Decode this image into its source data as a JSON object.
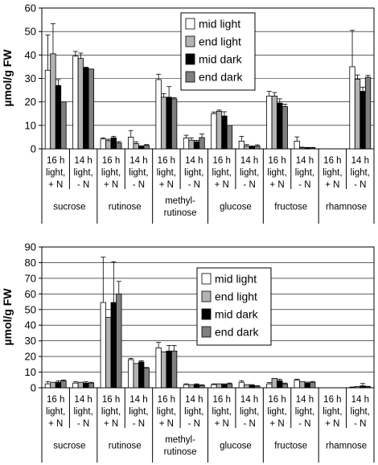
{
  "colors": {
    "series": [
      "#ffffff",
      "#b3b3b3",
      "#000000",
      "#7f7f7f"
    ],
    "stroke": "#000000",
    "grid": "#000000",
    "background": "#ffffff"
  },
  "chart_data": [
    {
      "type": "bar",
      "ylabel": "µmol/g FW",
      "ylim": [
        0,
        60
      ],
      "yticks": [
        0,
        10,
        20,
        30,
        40,
        50,
        60
      ],
      "grid": true,
      "legend": "top-center",
      "sugars": [
        "sucrose",
        "rutinose",
        "methyl-rutinose",
        "glucose",
        "fructose",
        "rhamnose"
      ],
      "conditions": [
        "16 h light, + N",
        "14 h light, - N"
      ],
      "condition_lines": [
        [
          "16 h",
          "light,",
          "+ N"
        ],
        [
          "14 h",
          "light,",
          "- N"
        ]
      ],
      "sugar_lines": [
        [
          "sucrose"
        ],
        [
          "rutinose"
        ],
        [
          "methyl-",
          "rutinose"
        ],
        [
          "glucose"
        ],
        [
          "fructose"
        ],
        [
          "rhamnose"
        ]
      ],
      "series": [
        {
          "name": "mid light",
          "values": [
            33.5,
            39.5,
            4.2,
            5.0,
            29.5,
            4.6,
            15.0,
            3.3,
            22.5,
            3.3,
            0,
            35.0
          ],
          "errors": [
            15.0,
            2.0,
            0.5,
            2.8,
            2.3,
            1.2,
            0.7,
            2.0,
            2.0,
            1.8,
            0,
            15.5
          ]
        },
        {
          "name": "end light",
          "values": [
            40.5,
            38.5,
            3.5,
            2.2,
            22.0,
            3.7,
            16.0,
            1.2,
            22.5,
            0.4,
            0,
            29.7
          ],
          "errors": [
            12.8,
            2.3,
            0.6,
            0.8,
            1.5,
            1.0,
            0.5,
            0.6,
            1.5,
            0.3,
            0,
            1.8
          ]
        },
        {
          "name": "mid dark",
          "values": [
            27.0,
            34.5,
            4.7,
            1.0,
            22.0,
            3.0,
            14.0,
            0.9,
            19.5,
            0.4,
            0,
            24.5
          ],
          "errors": [
            2.5,
            0.3,
            0.6,
            0.3,
            4.5,
            0.6,
            1.8,
            0.4,
            1.8,
            0.2,
            0,
            1.8
          ]
        },
        {
          "name": "end dark",
          "values": [
            20.0,
            34.0,
            2.5,
            1.5,
            21.3,
            4.8,
            10.0,
            1.2,
            18.0,
            0.4,
            0,
            30.5
          ],
          "errors": [
            0,
            0,
            0.6,
            0.3,
            0.5,
            1.5,
            0,
            0.5,
            1.0,
            0.2,
            0,
            0.8
          ]
        }
      ]
    },
    {
      "type": "bar",
      "ylabel": "µmol/g FW",
      "ylim": [
        0,
        90
      ],
      "yticks": [
        0,
        10,
        20,
        30,
        40,
        50,
        60,
        70,
        80,
        90
      ],
      "grid": true,
      "legend": "top-center",
      "sugars": [
        "sucrose",
        "rutinose",
        "methyl-rutinose",
        "glucose",
        "fructose",
        "rhamnose"
      ],
      "conditions": [
        "16 h light, + N",
        "14 h light, - N"
      ],
      "condition_lines": [
        [
          "16 h",
          "light,",
          "+ N"
        ],
        [
          "14 h",
          "light,",
          "- N"
        ]
      ],
      "sugar_lines": [
        [
          "sucrose"
        ],
        [
          "rutinose"
        ],
        [
          "methyl-",
          "rutinose"
        ],
        [
          "glucose"
        ],
        [
          "fructose"
        ],
        [
          "rhamnose"
        ]
      ],
      "series": [
        {
          "name": "mid light",
          "values": [
            2.5,
            3.0,
            54.5,
            18.0,
            25.5,
            2.0,
            2.0,
            3.5,
            2.5,
            5.0,
            0,
            0.3
          ],
          "errors": [
            1.5,
            0.8,
            29.0,
            0.8,
            3.5,
            0.5,
            0.5,
            1.0,
            0.8,
            0.5,
            0,
            0.2
          ]
        },
        {
          "name": "end light",
          "values": [
            3.5,
            3.5,
            45.0,
            15.5,
            23.0,
            2.0,
            2.5,
            2.0,
            6.0,
            4.0,
            0,
            0.8
          ]
        },
        {
          "name": "mid dark",
          "values": [
            3.5,
            3.0,
            54.5,
            16.5,
            23.5,
            2.0,
            2.0,
            1.5,
            4.5,
            3.0,
            0,
            1.2
          ],
          "errors": [
            1.0,
            0.8,
            26.0,
            0.8,
            3.5,
            0.5,
            0.5,
            0.5,
            1.0,
            0.6,
            0,
            1.5
          ]
        },
        {
          "name": "end dark",
          "values": [
            4.5,
            3.0,
            60.0,
            12.5,
            23.5,
            1.5,
            2.5,
            1.0,
            2.5,
            3.5,
            0,
            0.6
          ],
          "errors": [
            0.5,
            0.5,
            8.0,
            0.5,
            3.5,
            0.4,
            0.5,
            0.3,
            0.5,
            0.5,
            0,
            0.3
          ]
        }
      ]
    }
  ]
}
